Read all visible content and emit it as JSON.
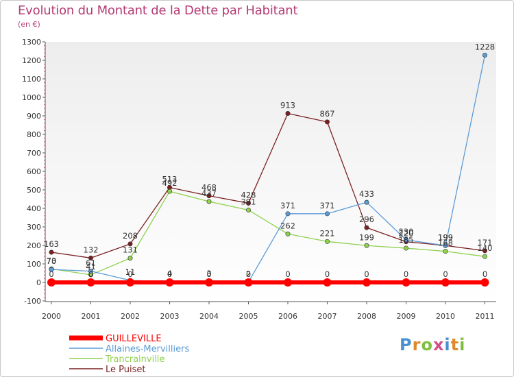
{
  "page": {
    "title": "Evolution du Montant de la Dette par Habitant",
    "subtitle": "(en €)"
  },
  "logo": {
    "text": "Proxiti",
    "letter_colors": [
      "#4a8fd0",
      "#e0892a",
      "#7fbf3f",
      "#d04f8a",
      "#4a8fd0",
      "#e0892a",
      "#7fbf3f"
    ]
  },
  "chart_data": {
    "type": "line",
    "x": [
      "2000",
      "2001",
      "2002",
      "2003",
      "2004",
      "2005",
      "2006",
      "2007",
      "2008",
      "2009",
      "2010",
      "2011"
    ],
    "ylim": [
      -100,
      1300
    ],
    "yticks": [
      -100,
      0,
      100,
      200,
      300,
      400,
      500,
      600,
      700,
      800,
      900,
      1000,
      1100,
      1200,
      1300
    ],
    "grid": false,
    "legend_position": "bottom-left",
    "series": [
      {
        "name": "GUILLEVILLE",
        "color": "#ff0000",
        "values": [
          0,
          0,
          0,
          0,
          0,
          0,
          0,
          0,
          0,
          0,
          0,
          0
        ],
        "labels": [
          "0",
          "0",
          "0",
          "0",
          "0",
          "0",
          "0",
          "0",
          "0",
          "0",
          "0",
          "0"
        ]
      },
      {
        "name": "Allaines-Mervilliers",
        "color": "#5b9bd5",
        "values": [
          70,
          61,
          11,
          4,
          3,
          2,
          371,
          371,
          433,
          230,
          199,
          1228
        ],
        "labels": [
          "70",
          "61",
          "11",
          "4",
          "3",
          "2",
          "371",
          "371",
          "433",
          "230",
          "199",
          "1228"
        ]
      },
      {
        "name": "Trancrainville",
        "color": "#8fd14f",
        "values": [
          73,
          41,
          131,
          492,
          437,
          391,
          262,
          221,
          199,
          185,
          168,
          140
        ],
        "labels": [
          "73",
          "41",
          "131",
          "492",
          "437",
          "391",
          "262",
          "221",
          "199",
          "185",
          "168",
          "140"
        ]
      },
      {
        "name": "Le Puiset",
        "color": "#7a2020",
        "values": [
          163,
          132,
          208,
          513,
          468,
          428,
          913,
          867,
          296,
          220,
          199,
          171
        ],
        "labels": [
          "163",
          "132",
          "208",
          "513",
          "468",
          "428",
          "913",
          "867",
          "296",
          "220",
          "199",
          "171"
        ]
      }
    ]
  }
}
